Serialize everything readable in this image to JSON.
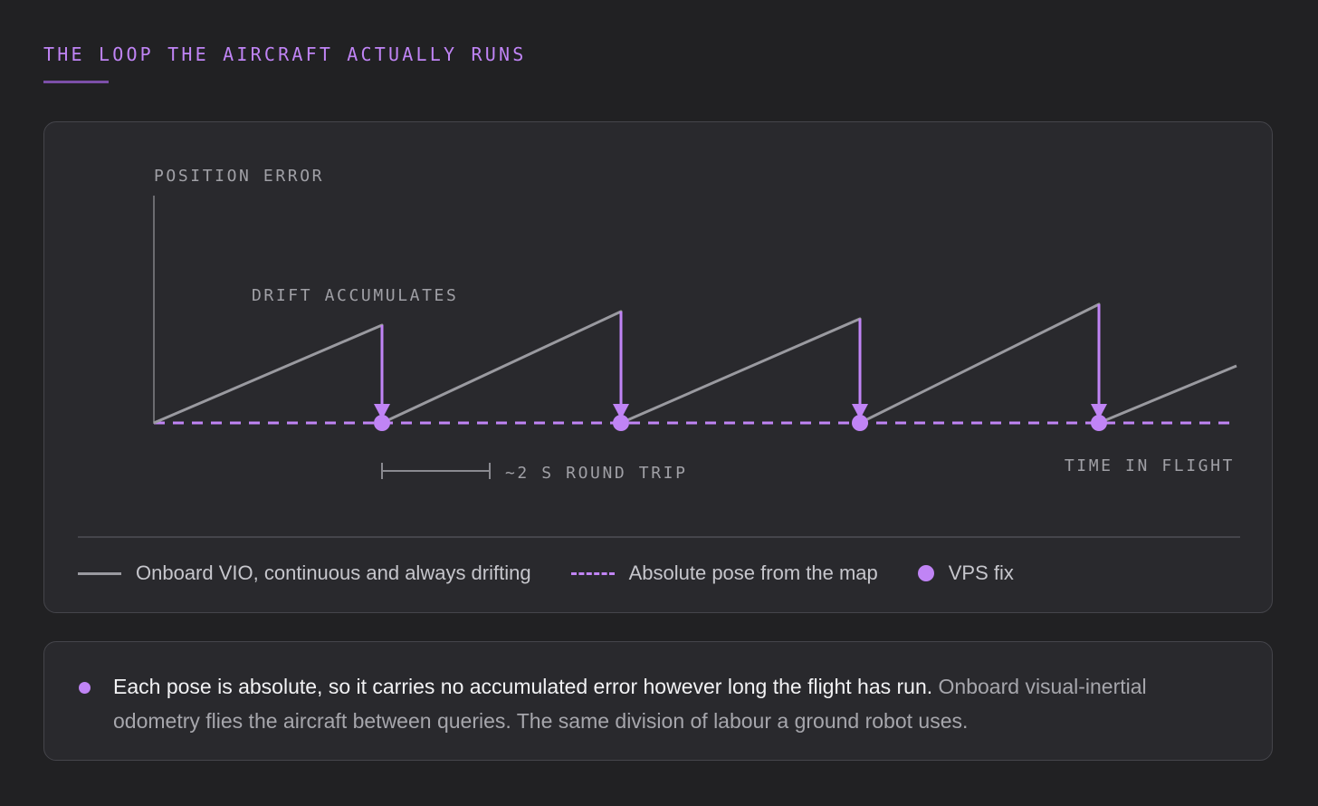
{
  "header": {
    "title": "THE LOOP THE AIRCRAFT ACTUALLY RUNS"
  },
  "diagram": {
    "y_axis_label": "POSITION ERROR",
    "x_axis_label": "TIME IN FLIGHT",
    "drift_annotation": "DRIFT ACCUMULATES",
    "round_trip_annotation": "~2 S ROUND TRIP",
    "colors": {
      "vio": "#9a9aa0",
      "absolute": "#c084f5",
      "axis": "#6b6b70"
    }
  },
  "legend": {
    "vio": "Onboard VIO, continuous and always drifting",
    "absolute": "Absolute pose from the map",
    "fix": "VPS fix"
  },
  "note": {
    "strong": "Each pose is absolute, so it carries no accumulated error however long the flight has run.",
    "rest": " Onboard visual-inertial odometry flies the aircraft between queries. The same division of labour a ground robot uses."
  }
}
